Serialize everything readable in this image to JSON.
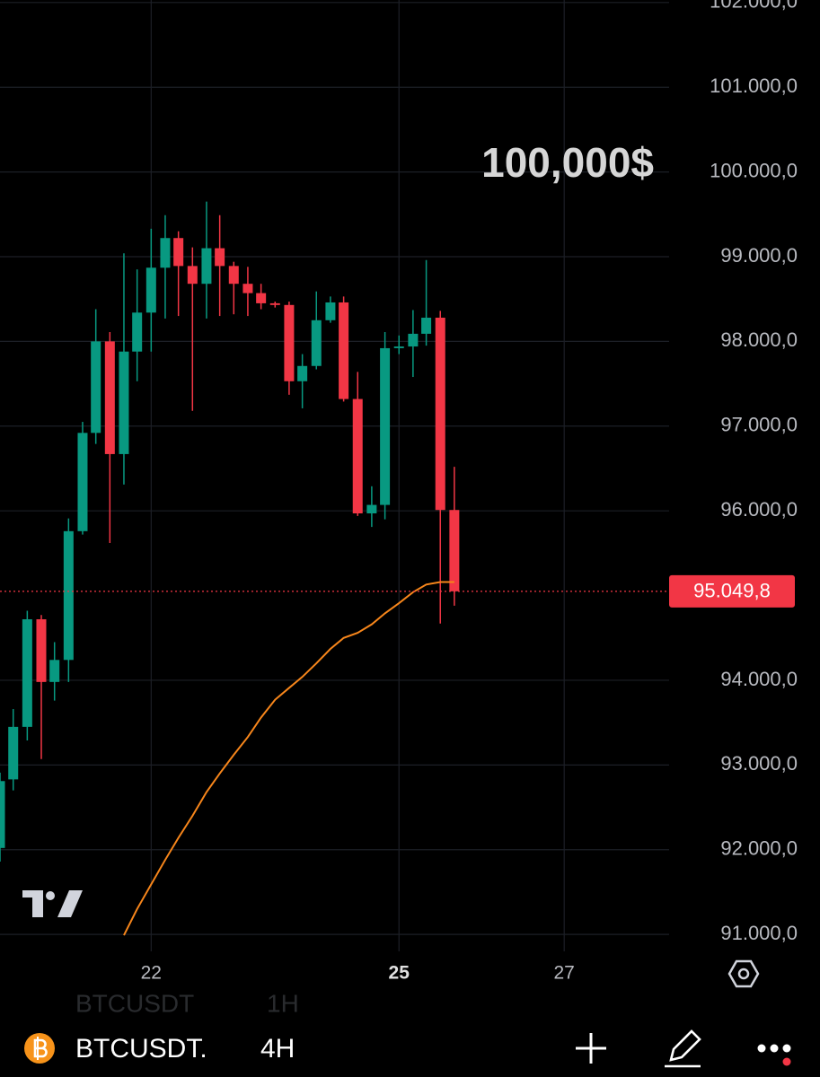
{
  "chart_data": {
    "type": "candlestick",
    "annotation": "100,000$",
    "x": [
      20.17,
      20.33,
      20.5,
      20.67,
      20.83,
      21,
      21.17,
      21.33,
      21.5,
      21.67,
      21.83,
      22,
      22.17,
      22.33,
      22.5,
      22.67,
      22.83,
      23,
      23.17,
      23.33,
      23.5,
      23.67,
      23.83,
      24,
      24.17,
      24.33,
      24.5,
      24.67,
      24.83,
      25,
      25.17,
      25.33,
      25.5,
      25.67
    ],
    "open": [
      92020,
      92830,
      93450,
      94720,
      93980,
      94240,
      95760,
      96920,
      98000,
      96670,
      97880,
      98340,
      98870,
      99220,
      98890,
      98680,
      99100,
      98890,
      98680,
      98570,
      98450,
      98430,
      97530,
      97710,
      98250,
      98460,
      97320,
      95970,
      96070,
      97920,
      97940,
      98090,
      98280,
      96010
    ],
    "high": [
      92910,
      93660,
      94820,
      94770,
      94450,
      95910,
      97050,
      98380,
      98110,
      99040,
      98850,
      99330,
      99490,
      99300,
      99110,
      99650,
      99490,
      98940,
      98880,
      98680,
      98470,
      98470,
      97850,
      98590,
      98530,
      98530,
      97640,
      96290,
      98110,
      98070,
      98370,
      98960,
      98360,
      96520
    ],
    "low": [
      91860,
      92700,
      93290,
      93070,
      93760,
      93980,
      95720,
      96790,
      95620,
      96310,
      97530,
      97880,
      98270,
      98300,
      97180,
      98270,
      98300,
      98320,
      98300,
      98380,
      98400,
      97370,
      97210,
      97670,
      98220,
      97290,
      95940,
      95810,
      95900,
      97850,
      97580,
      97950,
      94670,
      94880
    ],
    "close": [
      92810,
      93450,
      94720,
      93980,
      94240,
      95760,
      96920,
      98000,
      96670,
      97880,
      98340,
      98870,
      99220,
      98890,
      98680,
      99100,
      98890,
      98680,
      98570,
      98450,
      98430,
      97530,
      97710,
      98250,
      98460,
      97320,
      95970,
      96070,
      97920,
      97940,
      98090,
      98280,
      96010,
      95049.8
    ],
    "up_color": "#089981",
    "down_color": "#f23645",
    "series": [
      {
        "type": "line",
        "color": "#f7861b",
        "values": [
          null,
          null,
          null,
          null,
          null,
          null,
          null,
          null,
          null,
          90990,
          91300,
          91590,
          91880,
          92140,
          92400,
          92680,
          92900,
          93120,
          93330,
          93560,
          93770,
          93910,
          94040,
          94200,
          94370,
          94500,
          94560,
          94660,
          94790,
          94910,
          95040,
          95130,
          95160,
          95160
        ]
      }
    ],
    "last_price": {
      "value": 95049.8,
      "label": "95.049,8",
      "color": "#f23645"
    },
    "xlim": [
      20.17,
      28.27
    ],
    "xticks": [
      22,
      25,
      27
    ],
    "ylim": [
      90800,
      102030
    ],
    "yticks": [
      {
        "value": 91000,
        "label": "91.000,0"
      },
      {
        "value": 92000,
        "label": "92.000,0"
      },
      {
        "value": 93000,
        "label": "93.000,0"
      },
      {
        "value": 94000,
        "label": "94.000,0"
      },
      {
        "value": 96000,
        "label": "96.000,0"
      },
      {
        "value": 97000,
        "label": "97.000,0"
      },
      {
        "value": 98000,
        "label": "98.000,0"
      },
      {
        "value": 99000,
        "label": "99.000,0"
      },
      {
        "value": 100000,
        "label": "100.000,0"
      },
      {
        "value": 101000,
        "label": "101.000,0"
      },
      {
        "value": 102000,
        "label": "102.000,0"
      }
    ],
    "grid": true
  },
  "toolbar": {
    "ghost_symbol": "BTCUSDT",
    "ghost_interval": "1H",
    "symbol": "BTCUSDT.",
    "interval": "4H"
  }
}
